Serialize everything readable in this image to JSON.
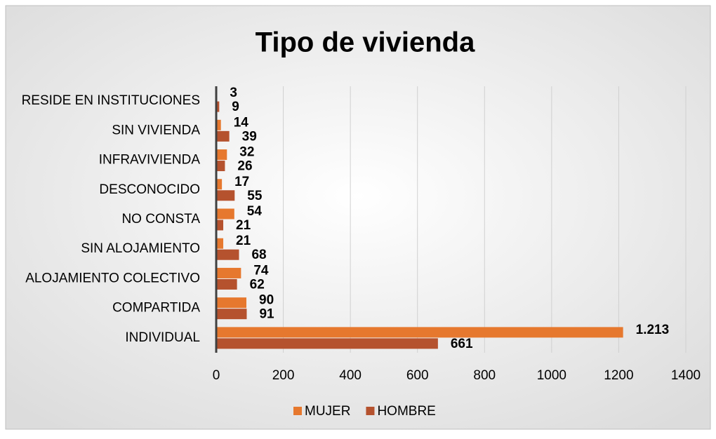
{
  "chart_data": {
    "type": "hbar",
    "title": "Tipo de vivienda",
    "categories": [
      "RESIDE EN INSTITUCIONES",
      "SIN VIVIENDA",
      "INFRAVIVIENDA",
      "DESCONOCIDO",
      "NO CONSTA",
      "SIN ALOJAMIENTO",
      "ALOJAMIENTO COLECTIVO",
      "COMPARTIDA",
      "INDIVIDUAL"
    ],
    "series": [
      {
        "name": "MUJER",
        "color": "#e6782e",
        "values": [
          3,
          14,
          32,
          17,
          54,
          21,
          74,
          90,
          1213
        ],
        "value_labels": [
          "3",
          "14",
          "32",
          "17",
          "54",
          "21",
          "74",
          "90",
          "1.213"
        ]
      },
      {
        "name": "HOMBRE",
        "color": "#b5522e",
        "values": [
          9,
          39,
          26,
          55,
          21,
          68,
          62,
          91,
          661
        ]
      }
    ],
    "xlim": [
      0,
      1400
    ],
    "xticks": [
      0,
      200,
      400,
      600,
      800,
      1000,
      1200,
      1400
    ],
    "grid": true,
    "legend": "bottom"
  }
}
